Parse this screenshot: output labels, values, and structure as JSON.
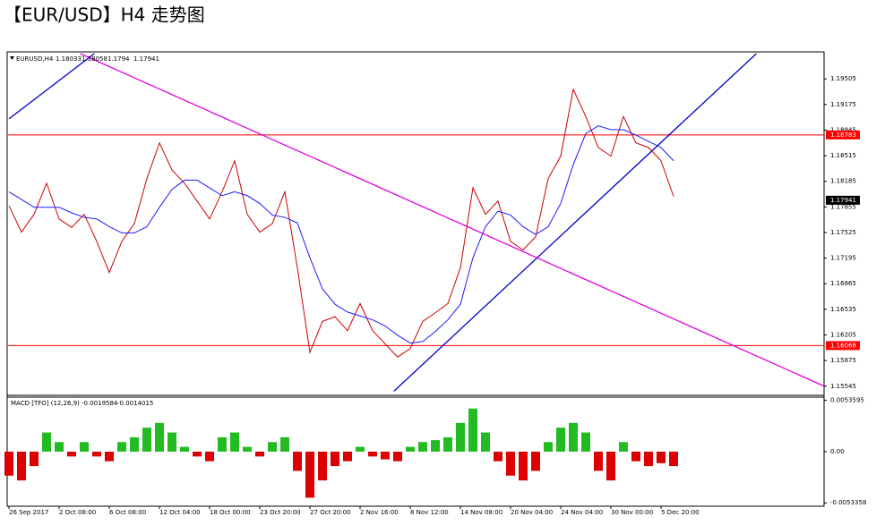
{
  "title": "【EUR/USD】H4 走势图",
  "chart_data": [
    {
      "type": "line",
      "symbol": "EURUSD,H4",
      "ohlc": [
        1.18033,
        1.18058,
        1.1794,
        1.17941
      ],
      "categories": [
        "26 Sep 2017",
        null,
        null,
        null,
        "2 Oct 08:00",
        null,
        null,
        null,
        "6 Oct 08:00",
        null,
        null,
        null,
        "12 Oct 04:00",
        null,
        null,
        null,
        "18 Oct 00:00",
        null,
        null,
        null,
        "23 Oct 20:00",
        null,
        null,
        null,
        "27 Oct 20:00",
        null,
        null,
        null,
        "2 Nov 16:00",
        null,
        null,
        null,
        "8 Nov 12:00",
        null,
        null,
        null,
        "14 Nov 08:00",
        null,
        null,
        null,
        "20 Nov 04:00",
        null,
        null,
        null,
        "24 Nov 04:00",
        null,
        null,
        null,
        "30 Nov 00:00",
        null,
        null,
        null,
        "5 Dec 20:00",
        null
      ],
      "series": [
        {
          "color": "#cc0000",
          "values": [
            1.1787,
            1.1753,
            1.1776,
            1.1816,
            1.177,
            1.1759,
            1.1776,
            1.1741,
            1.1701,
            1.1741,
            1.1764,
            1.1822,
            1.1868,
            1.1833,
            1.1816,
            1.1793,
            1.177,
            1.1805,
            1.1845,
            1.1776,
            1.1753,
            1.1764,
            1.1805,
            1.1707,
            1.1598,
            1.1638,
            1.1644,
            1.1626,
            1.1661,
            1.1626,
            1.1609,
            1.1592,
            1.1603,
            1.1638,
            1.1649,
            1.1661,
            1.1707,
            1.181,
            1.1776,
            1.1793,
            1.1741,
            1.173,
            1.1747,
            1.1822,
            1.1851,
            1.1937,
            1.1902,
            1.1862,
            1.1851,
            1.1902,
            1.1868,
            1.1862,
            1.1845,
            1.1799
          ]
        },
        {
          "color": "#1a1aff",
          "values": [
            1.1805,
            1.1795,
            1.1785,
            1.1785,
            1.1785,
            1.1778,
            1.1772,
            1.177,
            1.176,
            1.1752,
            1.1752,
            1.176,
            1.1785,
            1.1808,
            1.182,
            1.182,
            1.181,
            1.18,
            1.1805,
            1.18,
            1.179,
            1.1775,
            1.1772,
            1.1765,
            1.172,
            1.168,
            1.166,
            1.165,
            1.1645,
            1.164,
            1.1632,
            1.162,
            1.161,
            1.1612,
            1.1625,
            1.164,
            1.166,
            1.172,
            1.176,
            1.178,
            1.1775,
            1.176,
            1.175,
            1.176,
            1.179,
            1.184,
            1.188,
            1.189,
            1.1885,
            1.1885,
            1.1878,
            1.187,
            1.1862,
            1.1845
          ]
        }
      ],
      "hlines": [
        {
          "value": 1.18783,
          "color": "#ff0000"
        },
        {
          "value": 1.16068,
          "color": "#ff0000"
        }
      ],
      "trendlines": [
        {
          "color": "#0000cc",
          "x": [
            0,
            6.8
          ],
          "y": [
            1.1899,
            1.1983
          ]
        },
        {
          "color": "#0000cc",
          "x": [
            30.7,
            59.6
          ],
          "y": [
            1.1548,
            1.1983
          ]
        },
        {
          "color": "#e000e0",
          "x": [
            5.7,
            65
          ],
          "y": [
            1.1983,
            1.15545
          ]
        }
      ],
      "xlim": [
        0,
        65
      ],
      "ylim": [
        1.1545,
        1.1983
      ],
      "yticks": [
        1.19505,
        1.19175,
        1.18845,
        1.18515,
        1.18185,
        1.17855,
        1.17525,
        1.17195,
        1.16865,
        1.16535,
        1.16205,
        1.15875,
        1.15545
      ]
    },
    {
      "type": "histogram-bar",
      "name": "MACD [TFO] (12,26,9)",
      "readouts": [
        -0.0019584,
        -0.0014015
      ],
      "positive_color": "#22bb22",
      "negative_color": "#dd0000",
      "values": [
        -0.0025,
        -0.003,
        -0.0015,
        0.002,
        0.001,
        -0.0005,
        0.001,
        -0.0005,
        -0.001,
        0.001,
        0.0015,
        0.0025,
        0.003,
        0.002,
        0.0005,
        -0.0005,
        -0.001,
        0.0015,
        0.002,
        0.0005,
        -0.0005,
        0.001,
        0.0015,
        -0.002,
        -0.0048,
        -0.003,
        -0.0015,
        -0.001,
        0.0005,
        -0.0005,
        -0.0008,
        -0.001,
        0.0005,
        0.001,
        0.0012,
        0.0015,
        0.003,
        0.0045,
        0.002,
        -0.001,
        -0.0025,
        -0.003,
        -0.002,
        0.001,
        0.0025,
        0.003,
        0.002,
        -0.002,
        -0.003,
        0.001,
        -0.001,
        -0.0015,
        -0.0012,
        -0.0015
      ],
      "ylim": [
        -0.0055,
        0.0055
      ],
      "yticks": [
        0.0053595,
        {
          "value": 0,
          "label": "0.00"
        },
        -0.0053358
      ]
    }
  ]
}
